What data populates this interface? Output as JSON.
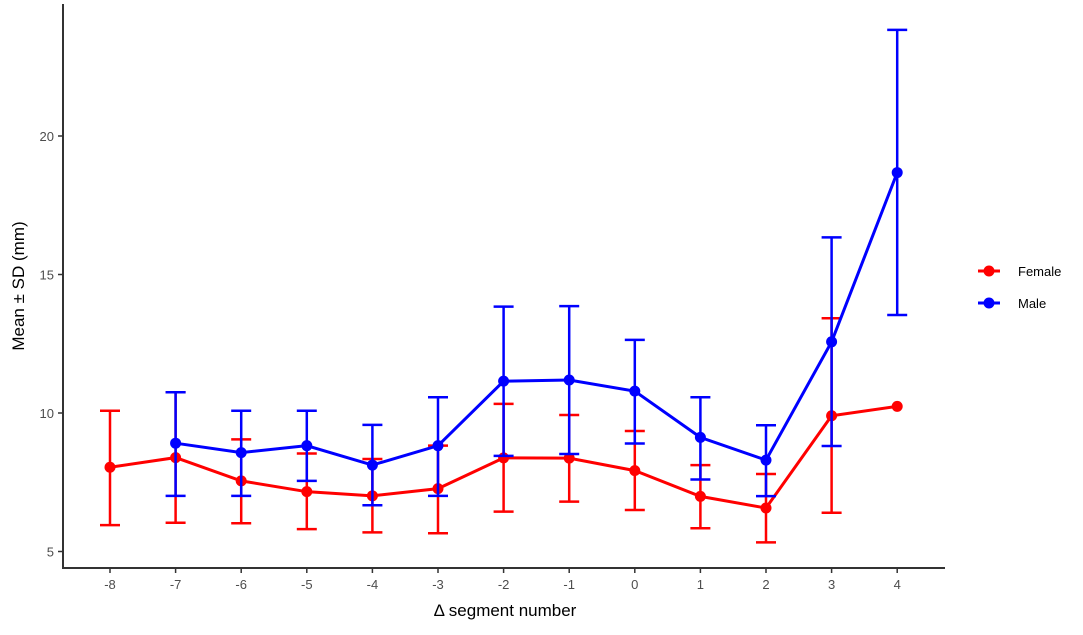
{
  "chart_data": {
    "type": "line",
    "title": "",
    "xlabel": "Δ segment number",
    "ylabel": "Mean ± SD (mm)",
    "x": [
      -8,
      -7,
      -6,
      -5,
      -4,
      -3,
      -2,
      -1,
      0,
      1,
      2,
      3,
      4
    ],
    "x_tick_labels": [
      "-8",
      "-7",
      "-6",
      "-5",
      "-4",
      "-3",
      "-2",
      "-1",
      "0",
      "1",
      "2",
      "3",
      "4"
    ],
    "y_ticks": [
      5,
      10,
      15,
      20
    ],
    "y_tick_labels": [
      "5",
      "10",
      "15",
      "20"
    ],
    "ylim": [
      4.4,
      24.4
    ],
    "xlim": [
      -8.7,
      4.7
    ],
    "grid": false,
    "legend_position": "right",
    "series": [
      {
        "name": "Female",
        "color": "#ff0000",
        "x": [
          -8,
          -7,
          -6,
          -5,
          -4,
          -3,
          -2,
          -1,
          0,
          1,
          2,
          3,
          4
        ],
        "mean": [
          8.04,
          8.39,
          7.55,
          7.16,
          7.01,
          7.27,
          8.38,
          8.37,
          7.92,
          6.99,
          6.57,
          9.9,
          10.24
        ],
        "upper": [
          10.08,
          10.75,
          9.05,
          8.54,
          8.34,
          8.82,
          10.33,
          9.93,
          9.35,
          8.12,
          7.8,
          13.42,
          null
        ],
        "lower": [
          5.95,
          6.04,
          6.02,
          5.81,
          5.69,
          5.66,
          6.44,
          6.8,
          6.5,
          5.84,
          5.33,
          6.4,
          null
        ]
      },
      {
        "name": "Male",
        "color": "#0000ff",
        "x": [
          -7,
          -6,
          -5,
          -4,
          -3,
          -2,
          -1,
          0,
          1,
          2,
          3,
          4
        ],
        "mean": [
          8.91,
          8.57,
          8.82,
          8.12,
          8.82,
          11.15,
          11.19,
          10.79,
          9.12,
          8.3,
          12.57,
          18.68
        ],
        "upper": [
          10.75,
          10.08,
          10.08,
          9.57,
          10.57,
          13.84,
          13.86,
          12.64,
          10.57,
          9.56,
          16.34,
          23.83
        ],
        "lower": [
          7.01,
          7.01,
          7.55,
          6.67,
          7.01,
          8.45,
          8.52,
          8.9,
          7.6,
          7.0,
          8.81,
          13.54
        ]
      }
    ]
  }
}
